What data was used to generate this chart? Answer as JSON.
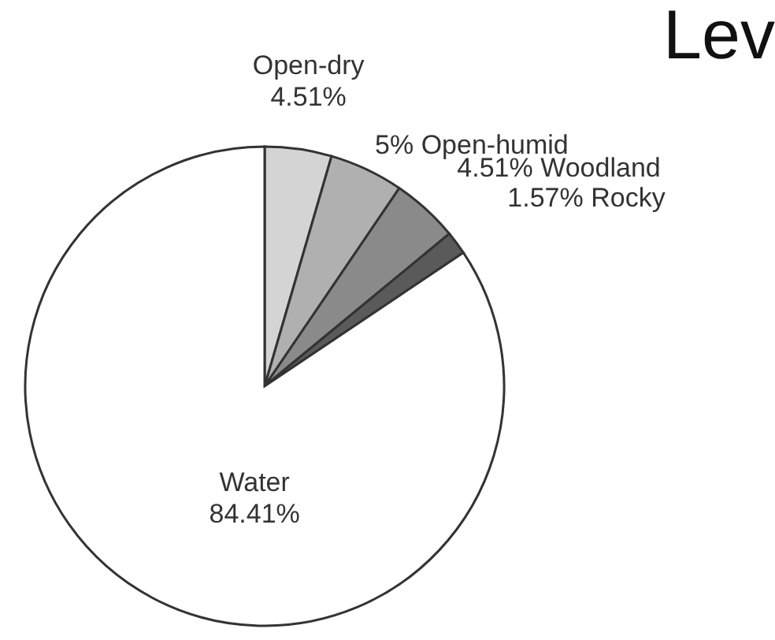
{
  "chart_data": {
    "type": "pie",
    "title": "Lev",
    "categories": [
      "Open-dry",
      "Open-humid",
      "Woodland",
      "Rocky",
      "Water"
    ],
    "values": [
      4.51,
      5,
      4.51,
      1.57,
      84.41
    ],
    "value_labels": [
      "4.51%",
      "5%",
      "4.51%",
      "1.57%",
      "84.41%"
    ],
    "colors": [
      "#d4d4d4",
      "#b0b0b0",
      "#8a8a8a",
      "#5a5a5a",
      "#ffffff"
    ],
    "legend": false
  }
}
